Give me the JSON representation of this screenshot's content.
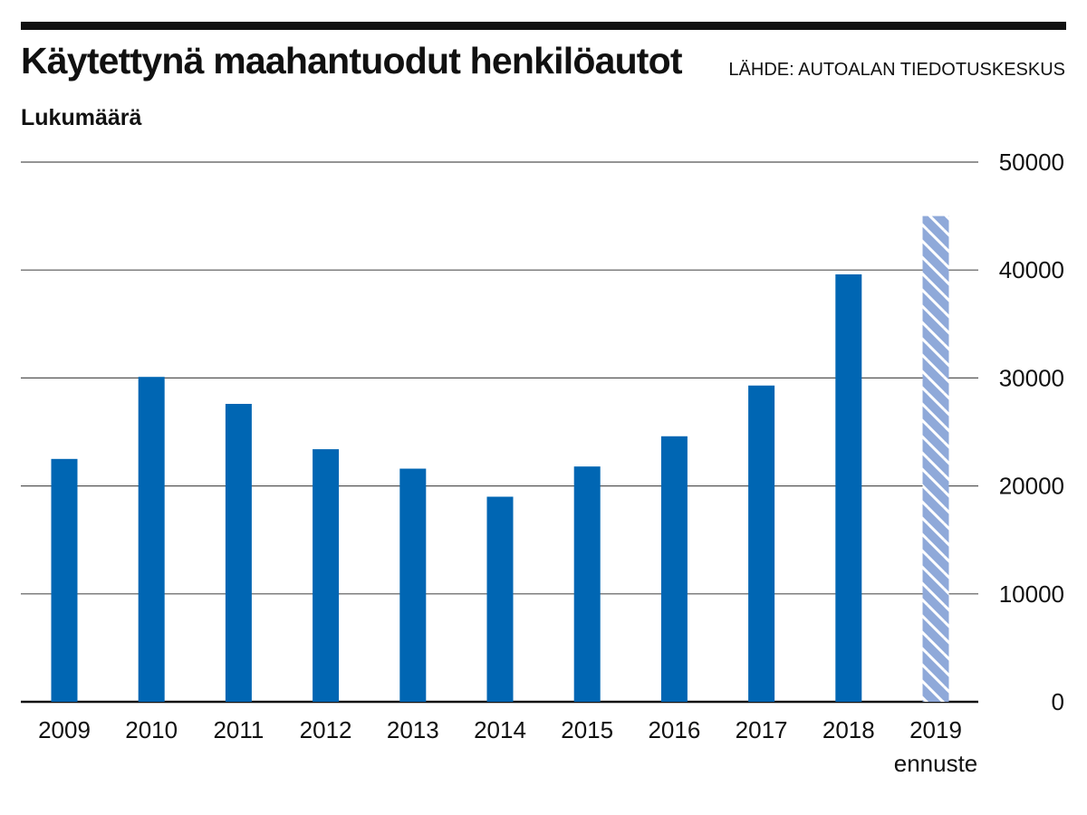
{
  "header": {
    "title": "Käytettynä maahantuodut henkilöautot",
    "source": "LÄHDE: AUTOALAN TIEDOTUSKESKUS",
    "unit_label": "Lukumäärä"
  },
  "colors": {
    "bar": "#0066b3",
    "forecast_bar": "#8fa9d9",
    "forecast_hatch": "#ffffff",
    "gridline": "#555555",
    "axis": "#111111",
    "text": "#111111"
  },
  "chart_data": {
    "type": "bar",
    "title": "Käytettynä maahantuodut henkilöautot",
    "ylabel": "Lukumäärä",
    "xlabel": "",
    "categories": [
      "2009",
      "2010",
      "2011",
      "2012",
      "2013",
      "2014",
      "2015",
      "2016",
      "2017",
      "2018",
      "2019"
    ],
    "category_sublabels": [
      "",
      "",
      "",
      "",
      "",
      "",
      "",
      "",
      "",
      "",
      "ennuste"
    ],
    "values": [
      22500,
      30100,
      27600,
      23400,
      21600,
      19000,
      21800,
      24600,
      29300,
      39600,
      45000
    ],
    "forecast": [
      false,
      false,
      false,
      false,
      false,
      false,
      false,
      false,
      false,
      false,
      true
    ],
    "ylim": [
      0,
      50000
    ],
    "yticks": [
      0,
      10000,
      20000,
      30000,
      40000,
      50000
    ],
    "grid": true,
    "y_axis_side": "right"
  }
}
